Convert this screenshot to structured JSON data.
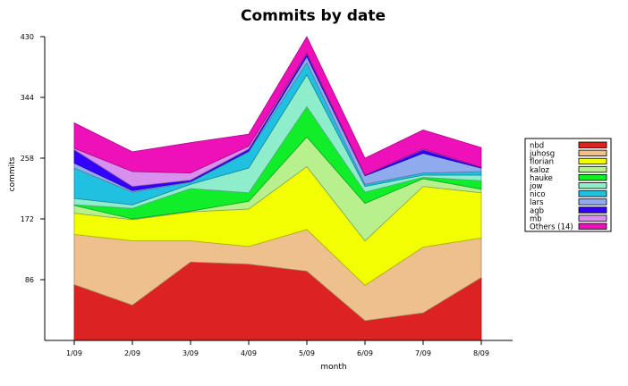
{
  "chart_data": {
    "type": "area",
    "stacked": true,
    "title": "Commits by date",
    "xlabel": "month",
    "ylabel": "commits",
    "ylim": [
      0,
      430
    ],
    "yticks": [
      86,
      172,
      258,
      344,
      430
    ],
    "grid": false,
    "legend_position": "right",
    "categories": [
      "1/09",
      "2/09",
      "3/09",
      "4/09",
      "5/09",
      "6/09",
      "7/09",
      "8/09"
    ],
    "series": [
      {
        "name": "nbd",
        "color": "#dd2222",
        "values": [
          79,
          50,
          111,
          108,
          98,
          28,
          39,
          89
        ]
      },
      {
        "name": "juhosg",
        "color": "#eec08e",
        "values": [
          71,
          91,
          30,
          25,
          59,
          50,
          93,
          56
        ]
      },
      {
        "name": "florian",
        "color": "#f2ff00",
        "values": [
          30,
          30,
          41,
          53,
          89,
          63,
          86,
          64
        ]
      },
      {
        "name": "kaloz",
        "color": "#b8f08e",
        "values": [
          11,
          1,
          1,
          11,
          42,
          53,
          11,
          5
        ]
      },
      {
        "name": "hauke",
        "color": "#10ee2a",
        "values": [
          1,
          15,
          32,
          12,
          43,
          16,
          2,
          12
        ]
      },
      {
        "name": "jow",
        "color": "#8eeecc",
        "values": [
          9,
          5,
          6,
          35,
          45,
          8,
          3,
          8
        ]
      },
      {
        "name": "nico",
        "color": "#20c0e0",
        "values": [
          43,
          18,
          3,
          23,
          17,
          3,
          3,
          5
        ]
      },
      {
        "name": "lars",
        "color": "#90aaee",
        "values": [
          7,
          2,
          1,
          1,
          9,
          12,
          28,
          5
        ]
      },
      {
        "name": "agb",
        "color": "#3300ff",
        "values": [
          19,
          6,
          2,
          3,
          4,
          1,
          5,
          1
        ]
      },
      {
        "name": "mb",
        "color": "#d890ee",
        "values": [
          2,
          21,
          10,
          4,
          1,
          0,
          1,
          0
        ]
      },
      {
        "name": "Others (14)",
        "color": "#ee10b8",
        "values": [
          36,
          28,
          43,
          17,
          23,
          24,
          27,
          28
        ]
      }
    ]
  }
}
